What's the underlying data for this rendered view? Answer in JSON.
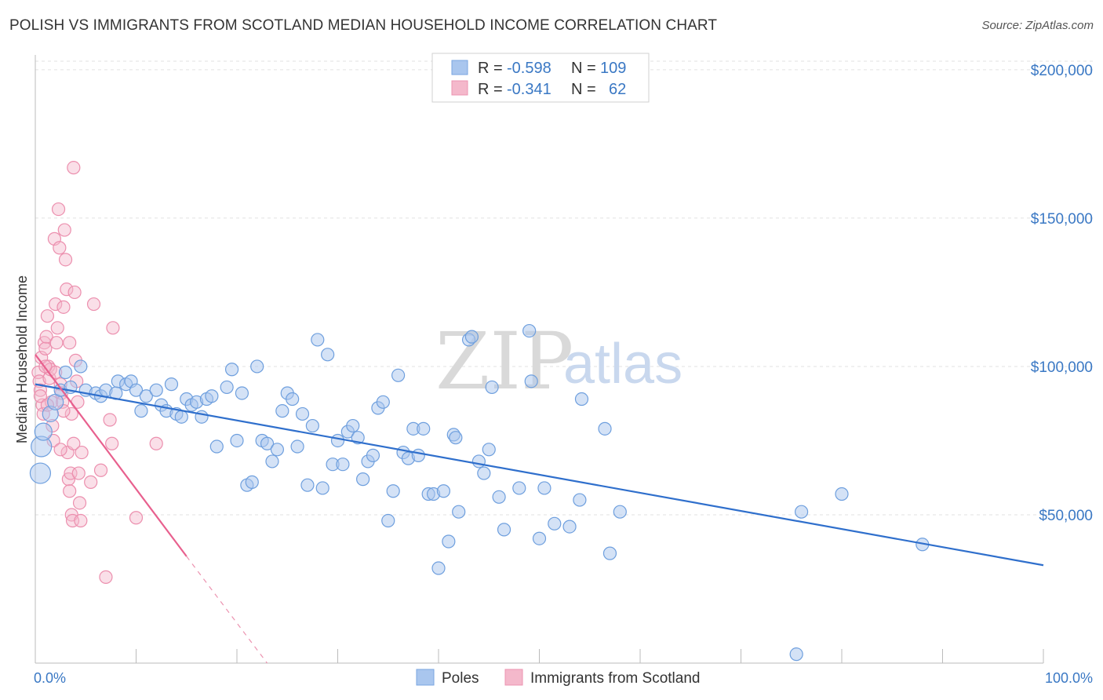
{
  "title": "POLISH VS IMMIGRANTS FROM SCOTLAND MEDIAN HOUSEHOLD INCOME CORRELATION CHART",
  "source": "Source: ZipAtlas.com",
  "watermark": {
    "zip": "ZIP",
    "atlas": "atlas"
  },
  "colors": {
    "blue": "#3a78c4",
    "blue_fill": "#a9c6ee",
    "blue_line": "#2f6fcc",
    "pink": "#e8608e",
    "pink_fill": "#f4b8cb"
  },
  "legend": [
    {
      "r_label": "R =",
      "r_value": "-0.598",
      "n_label": "N =",
      "n_value": "109"
    },
    {
      "r_label": "R =",
      "r_value": "-0.341",
      "n_label": "N =",
      "n_value": "62"
    }
  ],
  "chart_data": {
    "type": "scatter",
    "title": "POLISH VS IMMIGRANTS FROM SCOTLAND MEDIAN HOUSEHOLD INCOME CORRELATION CHART",
    "xlabel": "",
    "ylabel": "Median Household Income",
    "x_tick_labels": [
      "0.0%",
      "100.0%"
    ],
    "y_tick_labels": [
      "$50,000",
      "$100,000",
      "$150,000",
      "$200,000"
    ],
    "y_ticks": [
      50000,
      100000,
      150000,
      200000
    ],
    "xlim": [
      0,
      100
    ],
    "ylim": [
      0,
      205000
    ],
    "series": [
      {
        "name": "Poles",
        "color": "#a9c6ee",
        "trend": {
          "x": [
            0,
            100
          ],
          "y": [
            94000,
            33000
          ]
        },
        "points": [
          [
            0.5,
            64000
          ],
          [
            0.6,
            73000
          ],
          [
            0.8,
            78000
          ],
          [
            1.5,
            84000
          ],
          [
            2.0,
            88000
          ],
          [
            2.5,
            92000
          ],
          [
            3.0,
            98000
          ],
          [
            3.5,
            93000
          ],
          [
            4.5,
            100000
          ],
          [
            5,
            92000
          ],
          [
            6,
            91000
          ],
          [
            6.5,
            90000
          ],
          [
            7,
            92000
          ],
          [
            8,
            91000
          ],
          [
            8.2,
            95000
          ],
          [
            9,
            94000
          ],
          [
            9.5,
            95000
          ],
          [
            10,
            92000
          ],
          [
            10.5,
            85000
          ],
          [
            11,
            90000
          ],
          [
            12,
            92000
          ],
          [
            12.5,
            87000
          ],
          [
            13,
            85000
          ],
          [
            13.5,
            94000
          ],
          [
            14,
            84000
          ],
          [
            14.5,
            83000
          ],
          [
            15,
            89000
          ],
          [
            15.5,
            87000
          ],
          [
            16,
            88000
          ],
          [
            16.5,
            83000
          ],
          [
            17,
            89000
          ],
          [
            17.5,
            90000
          ],
          [
            18,
            73000
          ],
          [
            19,
            93000
          ],
          [
            19.5,
            99000
          ],
          [
            20,
            75000
          ],
          [
            20.5,
            91000
          ],
          [
            21,
            60000
          ],
          [
            21.5,
            61000
          ],
          [
            22,
            100000
          ],
          [
            22.5,
            75000
          ],
          [
            23,
            74000
          ],
          [
            23.5,
            68000
          ],
          [
            24,
            72000
          ],
          [
            24.5,
            85000
          ],
          [
            25,
            91000
          ],
          [
            25.5,
            89000
          ],
          [
            26,
            73000
          ],
          [
            26.5,
            84000
          ],
          [
            27,
            60000
          ],
          [
            27.5,
            80000
          ],
          [
            28,
            109000
          ],
          [
            28.5,
            59000
          ],
          [
            29,
            104000
          ],
          [
            29.5,
            67000
          ],
          [
            30,
            75000
          ],
          [
            30.5,
            67000
          ],
          [
            31,
            78000
          ],
          [
            31.5,
            80000
          ],
          [
            32,
            76000
          ],
          [
            32.5,
            62000
          ],
          [
            33,
            68000
          ],
          [
            33.5,
            70000
          ],
          [
            34,
            86000
          ],
          [
            34.5,
            88000
          ],
          [
            35,
            48000
          ],
          [
            35.5,
            58000
          ],
          [
            36,
            97000
          ],
          [
            36.5,
            71000
          ],
          [
            37,
            69000
          ],
          [
            37.5,
            79000
          ],
          [
            38,
            70000
          ],
          [
            38.5,
            79000
          ],
          [
            39,
            57000
          ],
          [
            39.5,
            57000
          ],
          [
            40,
            32000
          ],
          [
            40.5,
            58000
          ],
          [
            41,
            41000
          ],
          [
            41.5,
            77000
          ],
          [
            41.7,
            76000
          ],
          [
            42,
            51000
          ],
          [
            43,
            109000
          ],
          [
            43.3,
            110000
          ],
          [
            44,
            68000
          ],
          [
            44.5,
            64000
          ],
          [
            45,
            72000
          ],
          [
            45.3,
            93000
          ],
          [
            46,
            56000
          ],
          [
            46.5,
            45000
          ],
          [
            48,
            59000
          ],
          [
            49,
            112000
          ],
          [
            49.2,
            95000
          ],
          [
            50,
            42000
          ],
          [
            50.5,
            59000
          ],
          [
            51.5,
            47000
          ],
          [
            53,
            46000
          ],
          [
            54,
            55000
          ],
          [
            56.5,
            79000
          ],
          [
            57,
            37000
          ],
          [
            58,
            51000
          ],
          [
            76,
            51000
          ],
          [
            80,
            57000
          ],
          [
            88,
            40000
          ],
          [
            75.5,
            3000
          ],
          [
            54.2,
            89000
          ]
        ]
      },
      {
        "name": "Immigrants from Scotland",
        "color": "#f4b8cb",
        "trend": {
          "x": [
            0,
            15
          ],
          "y": [
            104000,
            36000
          ]
        },
        "trend_dashed": {
          "x": [
            15,
            23
          ],
          "y": [
            36000,
            0
          ]
        },
        "points": [
          [
            0.3,
            98000
          ],
          [
            0.4,
            95000
          ],
          [
            0.5,
            92000
          ],
          [
            0.6,
            103000
          ],
          [
            0.7,
            87000
          ],
          [
            0.8,
            84000
          ],
          [
            0.9,
            108000
          ],
          [
            1.0,
            106000
          ],
          [
            1.1,
            110000
          ],
          [
            1.2,
            117000
          ],
          [
            1.3,
            100000
          ],
          [
            1.4,
            96000
          ],
          [
            1.5,
            99000
          ],
          [
            1.6,
            88000
          ],
          [
            1.7,
            80000
          ],
          [
            1.8,
            75000
          ],
          [
            1.9,
            143000
          ],
          [
            2.0,
            121000
          ],
          [
            2.1,
            108000
          ],
          [
            2.2,
            113000
          ],
          [
            2.3,
            153000
          ],
          [
            2.4,
            140000
          ],
          [
            2.5,
            94000
          ],
          [
            2.6,
            91000
          ],
          [
            2.7,
            88000
          ],
          [
            2.8,
            120000
          ],
          [
            2.9,
            146000
          ],
          [
            3.0,
            136000
          ],
          [
            3.1,
            126000
          ],
          [
            3.2,
            71000
          ],
          [
            3.3,
            62000
          ],
          [
            3.4,
            58000
          ],
          [
            3.5,
            64000
          ],
          [
            3.6,
            50000
          ],
          [
            3.7,
            48000
          ],
          [
            3.8,
            167000
          ],
          [
            3.9,
            125000
          ],
          [
            4.0,
            102000
          ],
          [
            4.1,
            95000
          ],
          [
            4.2,
            88000
          ],
          [
            4.3,
            64000
          ],
          [
            4.4,
            54000
          ],
          [
            4.5,
            48000
          ],
          [
            3.4,
            108000
          ],
          [
            3.6,
            84000
          ],
          [
            3.8,
            74000
          ],
          [
            4.6,
            71000
          ],
          [
            5.5,
            61000
          ],
          [
            5.8,
            121000
          ],
          [
            6.5,
            65000
          ],
          [
            7.0,
            29000
          ],
          [
            7.4,
            82000
          ],
          [
            7.6,
            74000
          ],
          [
            7.7,
            113000
          ],
          [
            10.0,
            49000
          ],
          [
            12.0,
            74000
          ],
          [
            0.5,
            90000
          ],
          [
            1.2,
            87000
          ],
          [
            2.0,
            98000
          ],
          [
            2.8,
            85000
          ],
          [
            1.0,
            100000
          ],
          [
            2.5,
            72000
          ]
        ]
      }
    ],
    "legend": [
      "Poles",
      "Immigrants from Scotland"
    ],
    "legend_position": "top-center"
  }
}
